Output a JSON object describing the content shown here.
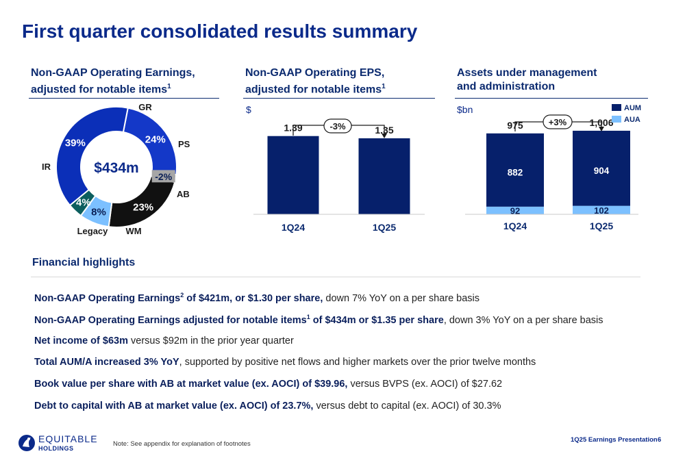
{
  "title": "First quarter consolidated results summary",
  "sections": {
    "earnings": {
      "title_line1": "Non-GAAP Operating Earnings,",
      "title_line2": "adjusted for notable items",
      "footnote": "1"
    },
    "eps": {
      "title_line1": "Non-GAAP Operating EPS,",
      "title_line2": "adjusted for notable items",
      "footnote": "1",
      "unit": "$"
    },
    "aum": {
      "title_line1": "Assets under management",
      "title_line2": "and administration",
      "unit": "$bn"
    }
  },
  "colors": {
    "navy": "#0b2a8a",
    "dark_navy": "#06206b",
    "light_blue": "#7cc0ff",
    "royal": "#1438c8",
    "black": "#111111",
    "teal": "#0c5e5e",
    "gray": "#a6a6a6"
  },
  "chart_data": [
    {
      "type": "pie",
      "center_label": "$434m",
      "slices": [
        {
          "name": "GR",
          "value": 24,
          "label": "24%",
          "color": "#1438c8"
        },
        {
          "name": "PS",
          "value": -2,
          "label": "-2%",
          "color": "#a6a6a6"
        },
        {
          "name": "AB",
          "value": 23,
          "label": "23%",
          "color": "#111111"
        },
        {
          "name": "WM",
          "value": 8,
          "label": "8%",
          "color": "#7cc0ff"
        },
        {
          "name": "Legacy",
          "value": 4,
          "label": "4%",
          "color": "#0c5e5e"
        },
        {
          "name": "IR",
          "value": 39,
          "label": "39%",
          "color": "#0b2fb8"
        }
      ]
    },
    {
      "type": "bar",
      "categories": [
        "1Q24",
        "1Q25"
      ],
      "values": [
        1.39,
        1.35
      ],
      "value_labels": [
        "1.39",
        "1.35"
      ],
      "change_label": "-3%",
      "ylim": [
        0,
        1.8
      ]
    },
    {
      "type": "bar",
      "stacked": true,
      "categories": [
        "1Q24",
        "1Q25"
      ],
      "series": [
        {
          "name": "AUM",
          "values": [
            882,
            904
          ],
          "labels": [
            "882",
            "904"
          ],
          "color": "#06206b"
        },
        {
          "name": "AUA",
          "values": [
            92,
            102
          ],
          "labels": [
            "92",
            "102"
          ],
          "color": "#7cc0ff"
        }
      ],
      "totals": [
        "975",
        "1,006"
      ],
      "change_label": "+3%",
      "ylim": [
        0,
        1360
      ]
    }
  ],
  "highlights": {
    "heading": "Financial highlights",
    "items": [
      {
        "bold": "Non-GAAP Operating Earnings",
        "sup": "2",
        "bold2": " of $421m, or $1.30 per share,",
        "rest": " down 7% YoY on a per share basis"
      },
      {
        "bold": "Non-GAAP Operating Earnings adjusted for notable items",
        "sup": "1",
        "bold2": " of $434m or $1.35 per share",
        "rest": ", down 3% YoY on a per share basis"
      },
      {
        "bold": "Net income of $63m",
        "sup": "",
        "bold2": "",
        "rest": " versus $92m in the prior year quarter"
      },
      {
        "bold": "Total AUM/A increased 3% YoY",
        "sup": "",
        "bold2": "",
        "rest": ", supported by positive net flows and higher markets over the prior twelve months"
      },
      {
        "bold": "Book value per share with AB at market value (ex. AOCI) of $39.96,",
        "sup": "",
        "bold2": "",
        "rest": " versus BVPS (ex. AOCI) of $27.62"
      },
      {
        "bold": "Debt to capital with AB at market value (ex. AOCI) of 23.7%,",
        "sup": "",
        "bold2": "",
        "rest": " versus debt to capital (ex. AOCI) of 30.3%"
      }
    ]
  },
  "footer": {
    "logo_line1": "EQUITABLE",
    "logo_line2": "HOLDINGS",
    "note": "Note: See appendix for explanation of footnotes",
    "presentation": "1Q25 Earnings Presentation",
    "page": "6"
  }
}
